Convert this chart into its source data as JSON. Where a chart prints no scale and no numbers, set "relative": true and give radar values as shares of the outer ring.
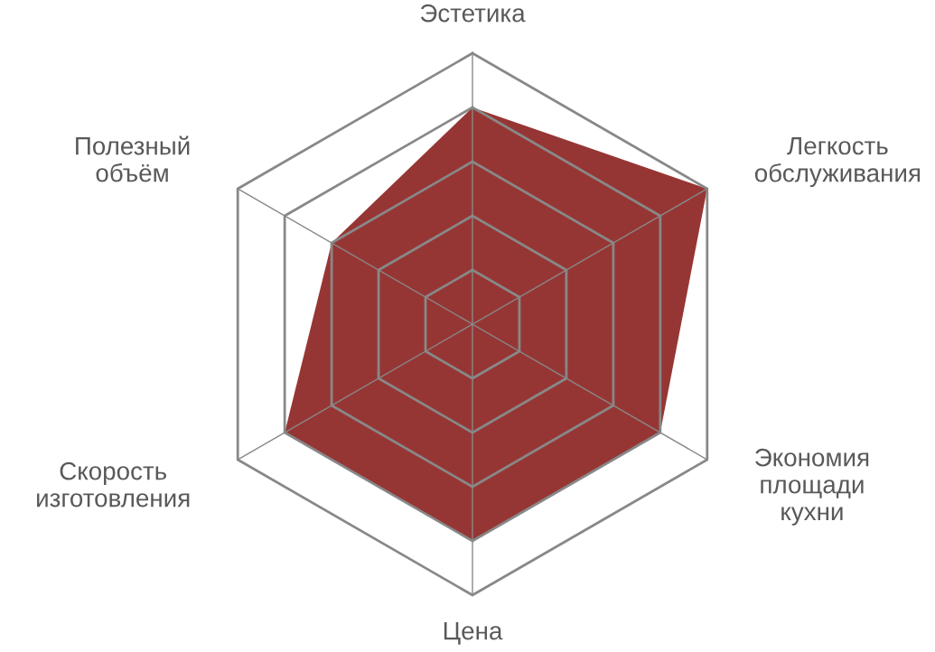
{
  "chart_data": {
    "type": "radar",
    "relative": true,
    "grid": true,
    "categories": [
      "Эстетика",
      "Легкость\nобслуживания",
      "Экономия\nплощади\nкухни",
      "Цена",
      "Скорость\nизготовления",
      "Полезный\nобъём"
    ],
    "series": [
      {
        "color": "#963634",
        "values": [
          0.8,
          1.0,
          0.8,
          0.8,
          0.8,
          0.6
        ]
      }
    ]
  }
}
